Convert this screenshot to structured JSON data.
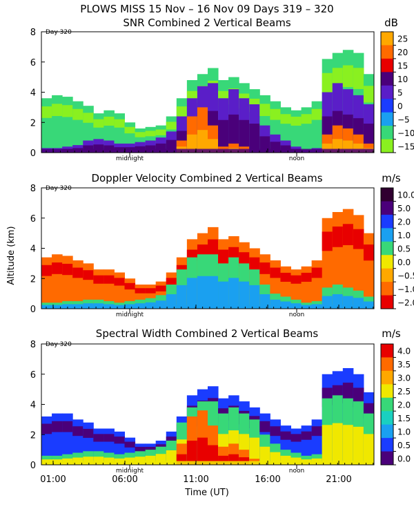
{
  "suptitle": "PLOWS MISS  15 Nov – 16 Nov 09 Days 319 – 320",
  "ylabel": "Altitude (km)",
  "xlabel": "Time (UT)",
  "day_label": "Day 320",
  "marker_midnight": "midnight",
  "marker_noon": "noon",
  "xticks": [
    "01:00",
    "06:00",
    "11:00",
    "16:00",
    "21:00"
  ],
  "yticks": [
    "0",
    "2",
    "4",
    "6",
    "8"
  ],
  "chart_data": [
    {
      "type": "heatmap",
      "title": "SNR Combined 2 Vertical Beams",
      "unit": "dB",
      "ylim": [
        0,
        8
      ],
      "colorbar_labels": [
        "25",
        "20",
        "15",
        "10",
        "5",
        "0",
        "−5",
        "−10",
        "−15"
      ],
      "colorbar_colors": [
        "#ffa800",
        "#ff6a00",
        "#e80000",
        "#4a007a",
        "#5a1ec8",
        "#1a3cff",
        "#1aa0f0",
        "#38d878",
        "#8af020"
      ],
      "top_heights": [
        3.6,
        3.8,
        3.7,
        3.4,
        3.1,
        2.6,
        2.8,
        2.6,
        2.0,
        1.6,
        1.7,
        1.8,
        2.4,
        3.6,
        4.8,
        5.2,
        5.6,
        4.8,
        5.0,
        4.6,
        4.2,
        3.8,
        3.4,
        3.0,
        2.8,
        3.0,
        3.4,
        6.2,
        6.6,
        6.8,
        6.6,
        5.2
      ],
      "core_heights": [
        0.3,
        0.3,
        0.4,
        0.5,
        0.8,
        0.9,
        0.8,
        0.6,
        0.6,
        0.7,
        0.8,
        1.0,
        1.4,
        2.4,
        3.6,
        4.4,
        4.6,
        3.6,
        4.2,
        3.6,
        3.2,
        1.8,
        1.2,
        0.8,
        0.4,
        0.2,
        0.3,
        4.0,
        4.6,
        4.2,
        3.8,
        3.2
      ],
      "peak_heights": [
        0,
        0,
        0,
        0,
        0,
        0,
        0,
        0,
        0,
        0,
        0,
        0,
        0,
        0.8,
        2.4,
        3.0,
        1.8,
        0.4,
        0.6,
        0.4,
        0,
        0,
        0,
        0,
        0,
        0,
        0,
        1.2,
        1.8,
        1.6,
        1.2,
        0.6
      ]
    },
    {
      "type": "heatmap",
      "title": "Doppler Velocity Combined 2 Vertical Beams",
      "unit": "m/s",
      "ylim": [
        0,
        8
      ],
      "colorbar_labels": [
        "10.0",
        "5.0",
        "2.0",
        "1.0",
        "0.5",
        "0.0",
        "−0.5",
        "−1.0",
        "−2.0"
      ],
      "colorbar_colors": [
        "#300030",
        "#4a007a",
        "#1a3cff",
        "#1aa0f0",
        "#38d878",
        "#f0e800",
        "#ffa800",
        "#ff6a00",
        "#e80000"
      ],
      "top_heights": [
        3.4,
        3.6,
        3.5,
        3.2,
        3.0,
        2.6,
        2.6,
        2.4,
        2.0,
        1.6,
        1.6,
        1.8,
        2.4,
        3.4,
        4.6,
        5.0,
        5.4,
        4.6,
        4.8,
        4.4,
        4.0,
        3.6,
        3.2,
        2.8,
        2.6,
        2.8,
        3.2,
        6.0,
        6.4,
        6.6,
        6.2,
        5.0
      ],
      "core_heights": [
        0.4,
        0.4,
        0.5,
        0.5,
        0.6,
        0.6,
        0.5,
        0.4,
        0.5,
        0.6,
        0.7,
        0.9,
        1.6,
        2.6,
        3.4,
        3.6,
        3.6,
        3.0,
        3.4,
        3.0,
        2.6,
        1.6,
        1.0,
        0.8,
        0.6,
        0.4,
        0.5,
        1.4,
        1.6,
        1.4,
        1.2,
        0.8
      ],
      "peak_heights": [
        0,
        0,
        0,
        0,
        0,
        0,
        0,
        0,
        0,
        0,
        0,
        0,
        0,
        0,
        0,
        0,
        0,
        0,
        0,
        0,
        0,
        0,
        0,
        0,
        0,
        0,
        0,
        0,
        0,
        0,
        0,
        0
      ]
    },
    {
      "type": "heatmap",
      "title": "Spectral Width Combined 2 Vertical Beams",
      "unit": "m/s",
      "ylim": [
        0,
        8
      ],
      "colorbar_labels": [
        "4.0",
        "3.5",
        "3.0",
        "2.5",
        "2.0",
        "1.5",
        "1.0",
        "0.5",
        "0.0"
      ],
      "colorbar_colors": [
        "#e80000",
        "#ff6a00",
        "#ffa800",
        "#f0e800",
        "#38d878",
        "#1ad0c0",
        "#1aa0f0",
        "#1a3cff",
        "#4a007a"
      ],
      "top_heights": [
        3.2,
        3.4,
        3.4,
        3.0,
        2.8,
        2.4,
        2.4,
        2.2,
        1.8,
        1.4,
        1.4,
        1.6,
        2.2,
        3.2,
        4.6,
        5.0,
        5.2,
        4.4,
        4.6,
        4.2,
        3.8,
        3.4,
        3.0,
        2.6,
        2.4,
        2.6,
        3.0,
        6.0,
        6.2,
        6.4,
        6.0,
        4.8
      ],
      "core_heights": [
        0.6,
        0.6,
        0.7,
        0.8,
        0.9,
        0.9,
        0.8,
        0.7,
        0.8,
        0.9,
        1.0,
        1.2,
        1.6,
        2.8,
        3.8,
        4.2,
        4.2,
        3.4,
        3.8,
        3.4,
        3.0,
        2.0,
        1.4,
        1.0,
        0.8,
        0.6,
        0.7,
        4.4,
        4.6,
        4.4,
        4.2,
        3.4
      ],
      "peak_heights": [
        0,
        0,
        0,
        0,
        0,
        0,
        0,
        0,
        0,
        0,
        0,
        0,
        0,
        1.4,
        3.2,
        3.6,
        2.6,
        1.2,
        1.4,
        1.0,
        0.4,
        0,
        0,
        0,
        0,
        0,
        0,
        0,
        0,
        0,
        0,
        0
      ]
    }
  ]
}
